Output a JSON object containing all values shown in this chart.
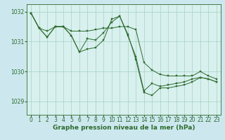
{
  "background_color": "#cce8ee",
  "plot_bg_color": "#d8f0ee",
  "grid_color": "#99ccbb",
  "line_color": "#2d6a2d",
  "xlabel": "Graphe pression niveau de la mer (hPa)",
  "xlabel_fontsize": 6.5,
  "tick_fontsize": 5.5,
  "xlim": [
    -0.5,
    23.5
  ],
  "ylim": [
    1028.55,
    1032.25
  ],
  "yticks": [
    1029,
    1030,
    1031,
    1032
  ],
  "xticks": [
    0,
    1,
    2,
    3,
    4,
    5,
    6,
    7,
    8,
    9,
    10,
    11,
    12,
    13,
    14,
    15,
    16,
    17,
    18,
    19,
    20,
    21,
    22,
    23
  ],
  "series": [
    [
      1031.95,
      1031.45,
      1031.35,
      1031.5,
      1031.5,
      1031.35,
      1031.35,
      1031.35,
      1031.4,
      1031.45,
      1031.45,
      1031.5,
      1031.5,
      1031.4,
      1030.3,
      1030.05,
      1029.9,
      1029.85,
      1029.85,
      1029.85,
      1029.85,
      1030.0,
      1029.85,
      1029.75
    ],
    [
      1031.95,
      1031.45,
      1031.15,
      1031.5,
      1031.5,
      1031.2,
      1030.65,
      1030.75,
      1030.8,
      1031.05,
      1031.75,
      1031.85,
      1031.2,
      1030.5,
      1029.35,
      1029.6,
      1029.5,
      1029.55,
      1029.6,
      1029.65,
      1029.75,
      1029.8,
      1029.75,
      1029.65
    ],
    [
      1031.95,
      1031.45,
      1031.15,
      1031.5,
      1031.5,
      1031.2,
      1030.65,
      1031.1,
      1031.05,
      1031.3,
      1031.65,
      1031.85,
      1031.25,
      1030.4,
      1029.3,
      1029.2,
      1029.45,
      1029.45,
      1029.5,
      1029.55,
      1029.65,
      1029.8,
      1029.75,
      1029.65
    ]
  ]
}
